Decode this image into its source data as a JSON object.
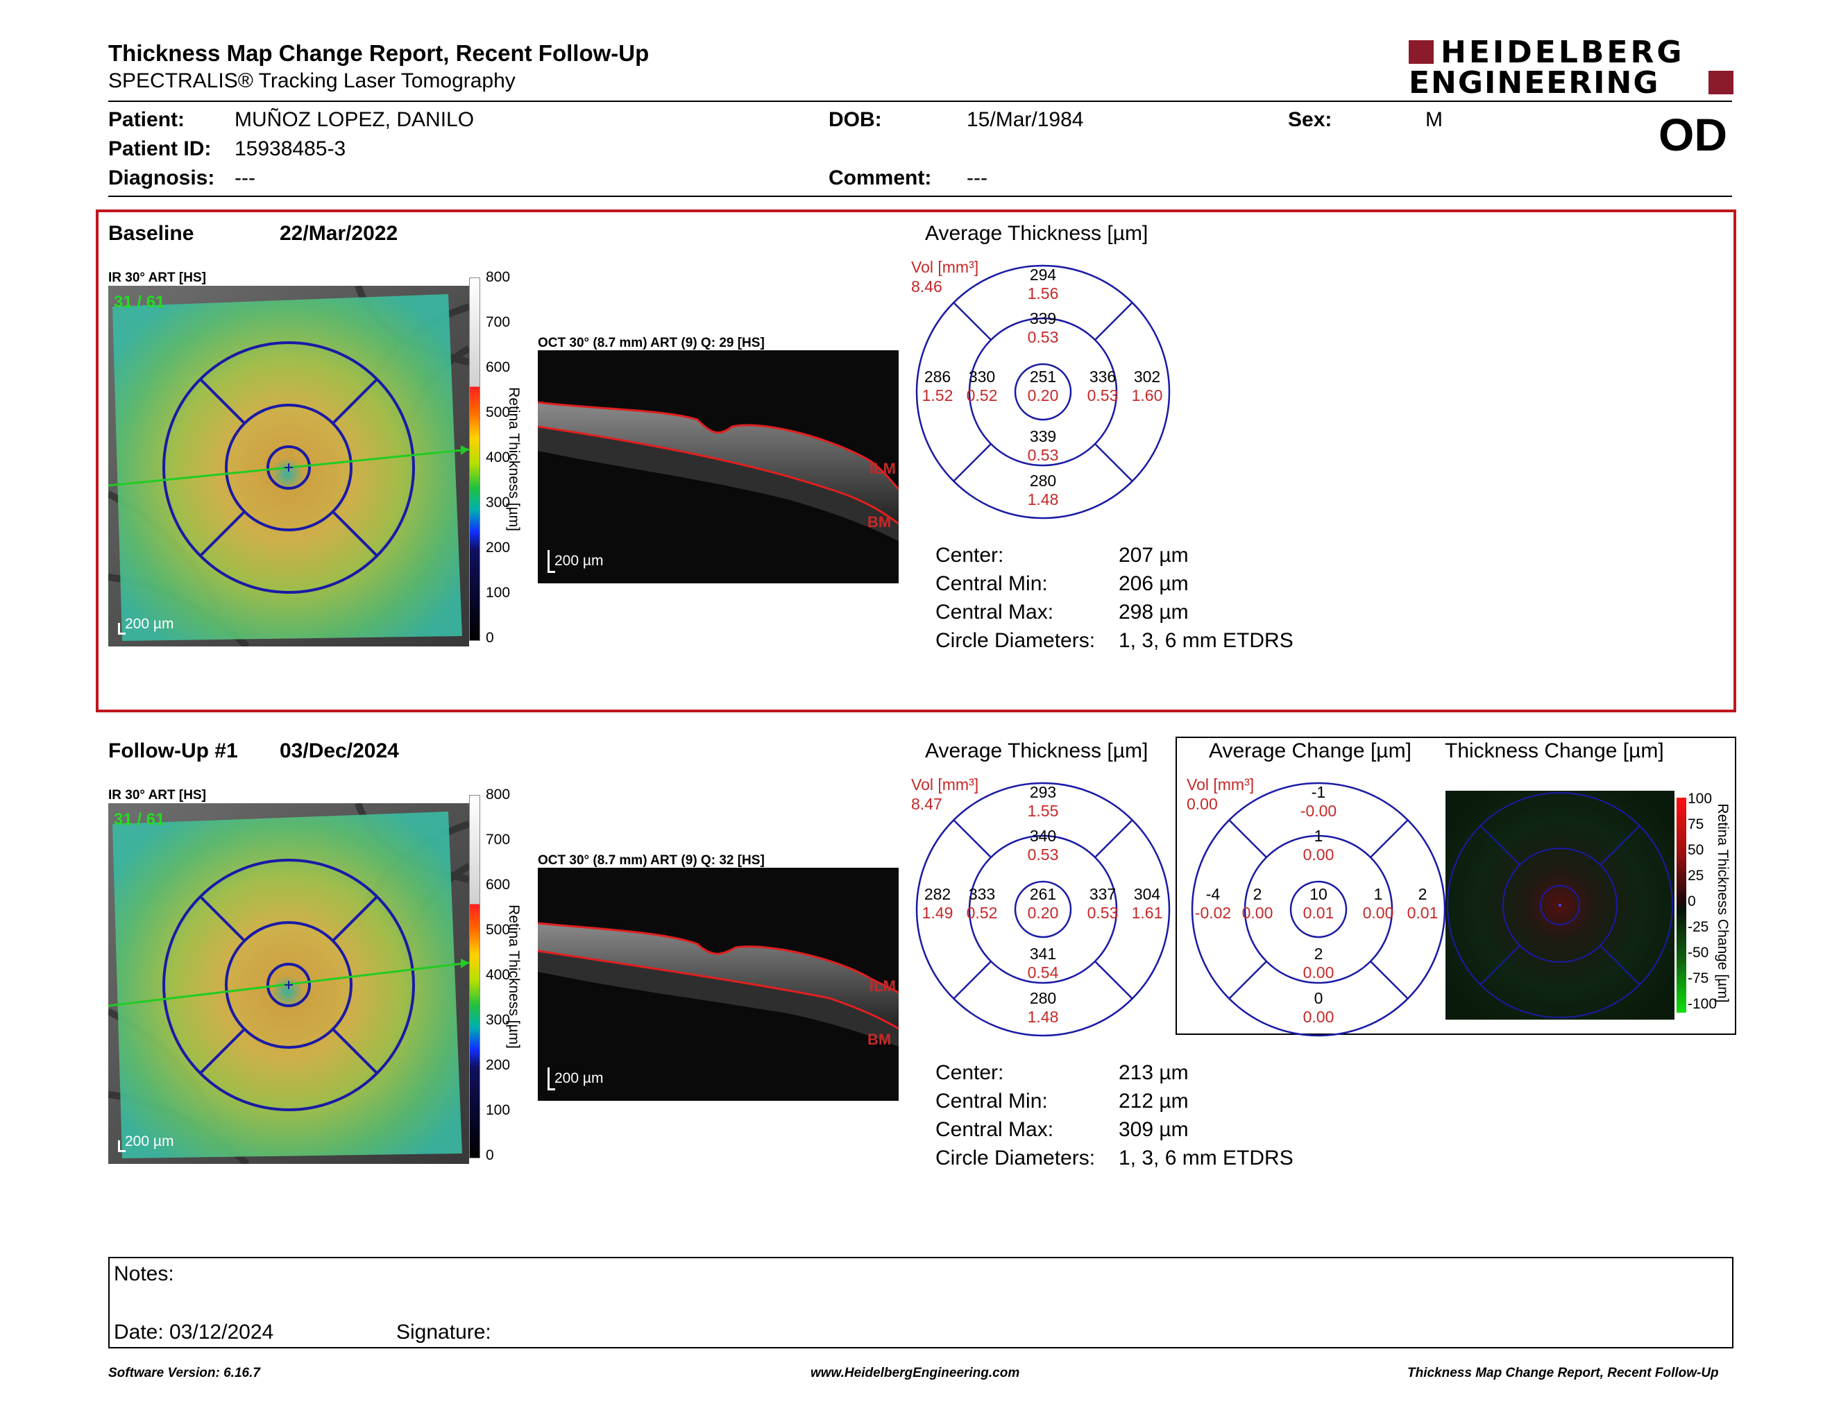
{
  "header": {
    "title": "Thickness Map Change Report, Recent Follow-Up",
    "subtitle": "SPECTRALIS® Tracking Laser Tomography",
    "logo_line1": "HEIDELBERG",
    "logo_line2": "ENGINEERING",
    "eye": "OD"
  },
  "patient": {
    "patient_label": "Patient:",
    "patient_value": "MUÑOZ LOPEZ, DANILO",
    "id_label": "Patient ID:",
    "id_value": "15938485-3",
    "diag_label": "Diagnosis:",
    "diag_value": "---",
    "dob_label": "DOB:",
    "dob_value": "15/Mar/1984",
    "comment_label": "Comment:",
    "comment_value": "---",
    "sex_label": "Sex:",
    "sex_value": "M"
  },
  "baseline": {
    "label": "Baseline",
    "date": "22/Mar/2022",
    "ir_caption": "IR 30° ART [HS]",
    "overlay_counter": "31 / 61",
    "scale_bar": "200 µm",
    "colorbar_ticks": [
      "800",
      "700",
      "600",
      "500",
      "400",
      "300",
      "200",
      "100",
      "0"
    ],
    "colorbar_label": "Retina Thickness [µm]",
    "oct_caption": "OCT 30° (8.7 mm) ART (9) Q: 29 [HS]",
    "oct_scale": "200 µm",
    "ilm": "ILM",
    "bm": "BM",
    "avg_title": "Average Thickness [µm]",
    "vol_label": "Vol [mm³]",
    "vol_value": "8.46",
    "grid": {
      "outer_top": [
        "294",
        "1.56"
      ],
      "inner_top": [
        "339",
        "0.53"
      ],
      "outer_left": [
        "286",
        "1.52"
      ],
      "inner_left": [
        "330",
        "0.52"
      ],
      "center": [
        "251",
        "0.20"
      ],
      "inner_right": [
        "336",
        "0.53"
      ],
      "outer_right": [
        "302",
        "1.60"
      ],
      "inner_bottom": [
        "339",
        "0.53"
      ],
      "outer_bottom": [
        "280",
        "1.48"
      ]
    },
    "stats": [
      {
        "label": "Center:",
        "value": "207 µm"
      },
      {
        "label": "Central Min:",
        "value": "206 µm"
      },
      {
        "label": "Central Max:",
        "value": "298 µm"
      },
      {
        "label": "Circle Diameters:",
        "value": "1, 3, 6 mm ETDRS"
      }
    ]
  },
  "followup": {
    "label": "Follow-Up #1",
    "date": "03/Dec/2024",
    "ir_caption": "IR 30° ART [HS]",
    "overlay_counter": "31 / 61",
    "scale_bar": "200 µm",
    "colorbar_ticks": [
      "800",
      "700",
      "600",
      "500",
      "400",
      "300",
      "200",
      "100",
      "0"
    ],
    "colorbar_label": "Retina Thickness [µm]",
    "oct_caption": "OCT 30° (8.7 mm) ART (9) Q: 32 [HS]",
    "oct_scale": "200 µm",
    "ilm": "ILM",
    "bm": "BM",
    "avg_title": "Average Thickness [µm]",
    "vol_label": "Vol [mm³]",
    "vol_value": "8.47",
    "grid": {
      "outer_top": [
        "293",
        "1.55"
      ],
      "inner_top": [
        "340",
        "0.53"
      ],
      "outer_left": [
        "282",
        "1.49"
      ],
      "inner_left": [
        "333",
        "0.52"
      ],
      "center": [
        "261",
        "0.20"
      ],
      "inner_right": [
        "337",
        "0.53"
      ],
      "outer_right": [
        "304",
        "1.61"
      ],
      "inner_bottom": [
        "341",
        "0.54"
      ],
      "outer_bottom": [
        "280",
        "1.48"
      ]
    },
    "stats": [
      {
        "label": "Center:",
        "value": "213 µm"
      },
      {
        "label": "Central Min:",
        "value": "212 µm"
      },
      {
        "label": "Central Max:",
        "value": "309 µm"
      },
      {
        "label": "Circle Diameters:",
        "value": "1, 3, 6 mm ETDRS"
      }
    ],
    "change_title": "Average Change [µm]",
    "change_vol_label": "Vol [mm³]",
    "change_vol_value": "0.00",
    "change_grid": {
      "outer_top": [
        "-1",
        "-0.00"
      ],
      "inner_top": [
        "1",
        "0.00"
      ],
      "outer_left": [
        "-4",
        "-0.02"
      ],
      "inner_left": [
        "2",
        "0.00"
      ],
      "center": [
        "10",
        "0.01"
      ],
      "inner_right": [
        "1",
        "0.00"
      ],
      "outer_right": [
        "2",
        "0.01"
      ],
      "inner_bottom": [
        "2",
        "0.00"
      ],
      "outer_bottom": [
        "0",
        "0.00"
      ]
    },
    "thick_change_title": "Thickness Change [µm]",
    "change_ticks": [
      "100",
      "75",
      "50",
      "25",
      "0",
      "-25",
      "-50",
      "-75",
      "-100"
    ],
    "change_bar_label": "Retina Thickness Change [µm]"
  },
  "notes": {
    "label": "Notes:",
    "date_label": "Date: 03/12/2024",
    "signature_label": "Signature:"
  },
  "footer": {
    "version": "Software Version: 6.16.7",
    "website": "www.HeidelbergEngineering.com",
    "report": "Thickness Map Change Report, Recent Follow-Up"
  },
  "colors": {
    "brand": "#8b1a2b",
    "baseline_frame": "#c0161e",
    "grid_line": "#1a1aa6",
    "value_red": "#c62828"
  }
}
